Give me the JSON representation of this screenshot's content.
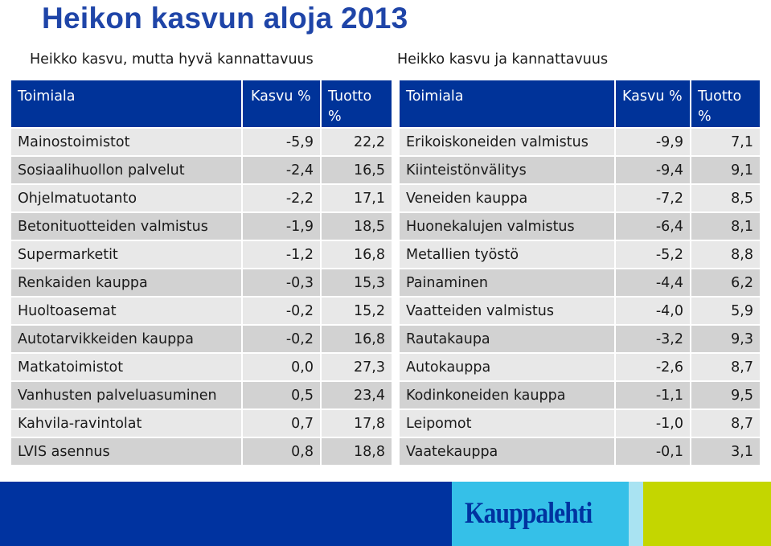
{
  "title": "Heikon kasvun aloja 2013",
  "left": {
    "subtitle": "Heikko kasvu, mutta hyvä kannattavuus",
    "headers": [
      "Toimiala",
      "Kasvu %",
      "Tuotto %"
    ],
    "rows": [
      [
        "Mainostoimistot",
        "-5,9",
        "22,2"
      ],
      [
        "Sosiaalihuollon palvelut",
        "-2,4",
        "16,5"
      ],
      [
        "Ohjelmatuotanto",
        "-2,2",
        "17,1"
      ],
      [
        "Betonituotteiden valmistus",
        "-1,9",
        "18,5"
      ],
      [
        "Supermarketit",
        "-1,2",
        "16,8"
      ],
      [
        "Renkaiden kauppa",
        "-0,3",
        "15,3"
      ],
      [
        "Huoltoasemat",
        "-0,2",
        "15,2"
      ],
      [
        "Autotarvikkeiden kauppa",
        "-0,2",
        "16,8"
      ],
      [
        "Matkatoimistot",
        "0,0",
        "27,3"
      ],
      [
        "Vanhusten palveluasuminen",
        "0,5",
        "23,4"
      ],
      [
        "Kahvila-ravintolat",
        "0,7",
        "17,8"
      ],
      [
        "LVIS asennus",
        "0,8",
        "18,8"
      ]
    ]
  },
  "right": {
    "subtitle": "Heikko kasvu ja kannattavuus",
    "headers": [
      "Toimiala",
      "Kasvu %",
      "Tuotto %"
    ],
    "rows": [
      [
        "Erikoiskoneiden valmistus",
        "-9,9",
        "7,1"
      ],
      [
        "Kiinteistönvälitys",
        "-9,4",
        "9,1"
      ],
      [
        "Veneiden kauppa",
        "-7,2",
        "8,5"
      ],
      [
        "Huonekalujen valmistus",
        "-6,4",
        "8,1"
      ],
      [
        "Metallien työstö",
        "-5,2",
        "8,8"
      ],
      [
        "Painaminen",
        "-4,4",
        "6,2"
      ],
      [
        "Vaatteiden valmistus",
        "-4,0",
        "5,9"
      ],
      [
        "Rautakaupa",
        "-3,2",
        "9,3"
      ],
      [
        "Autokauppa",
        "-2,6",
        "8,7"
      ],
      [
        "Kodinkoneiden kauppa",
        "-1,1",
        "9,5"
      ],
      [
        "Leipomot",
        "-1,0",
        "8,7"
      ],
      [
        "Vaatekauppa",
        "-0,1",
        "3,1"
      ]
    ]
  },
  "footer": {
    "logo_text": "Kauppalehti",
    "colors": {
      "blue": "#0033a0",
      "light_blue": "#35c0e8",
      "lime": "#c4d600"
    }
  }
}
